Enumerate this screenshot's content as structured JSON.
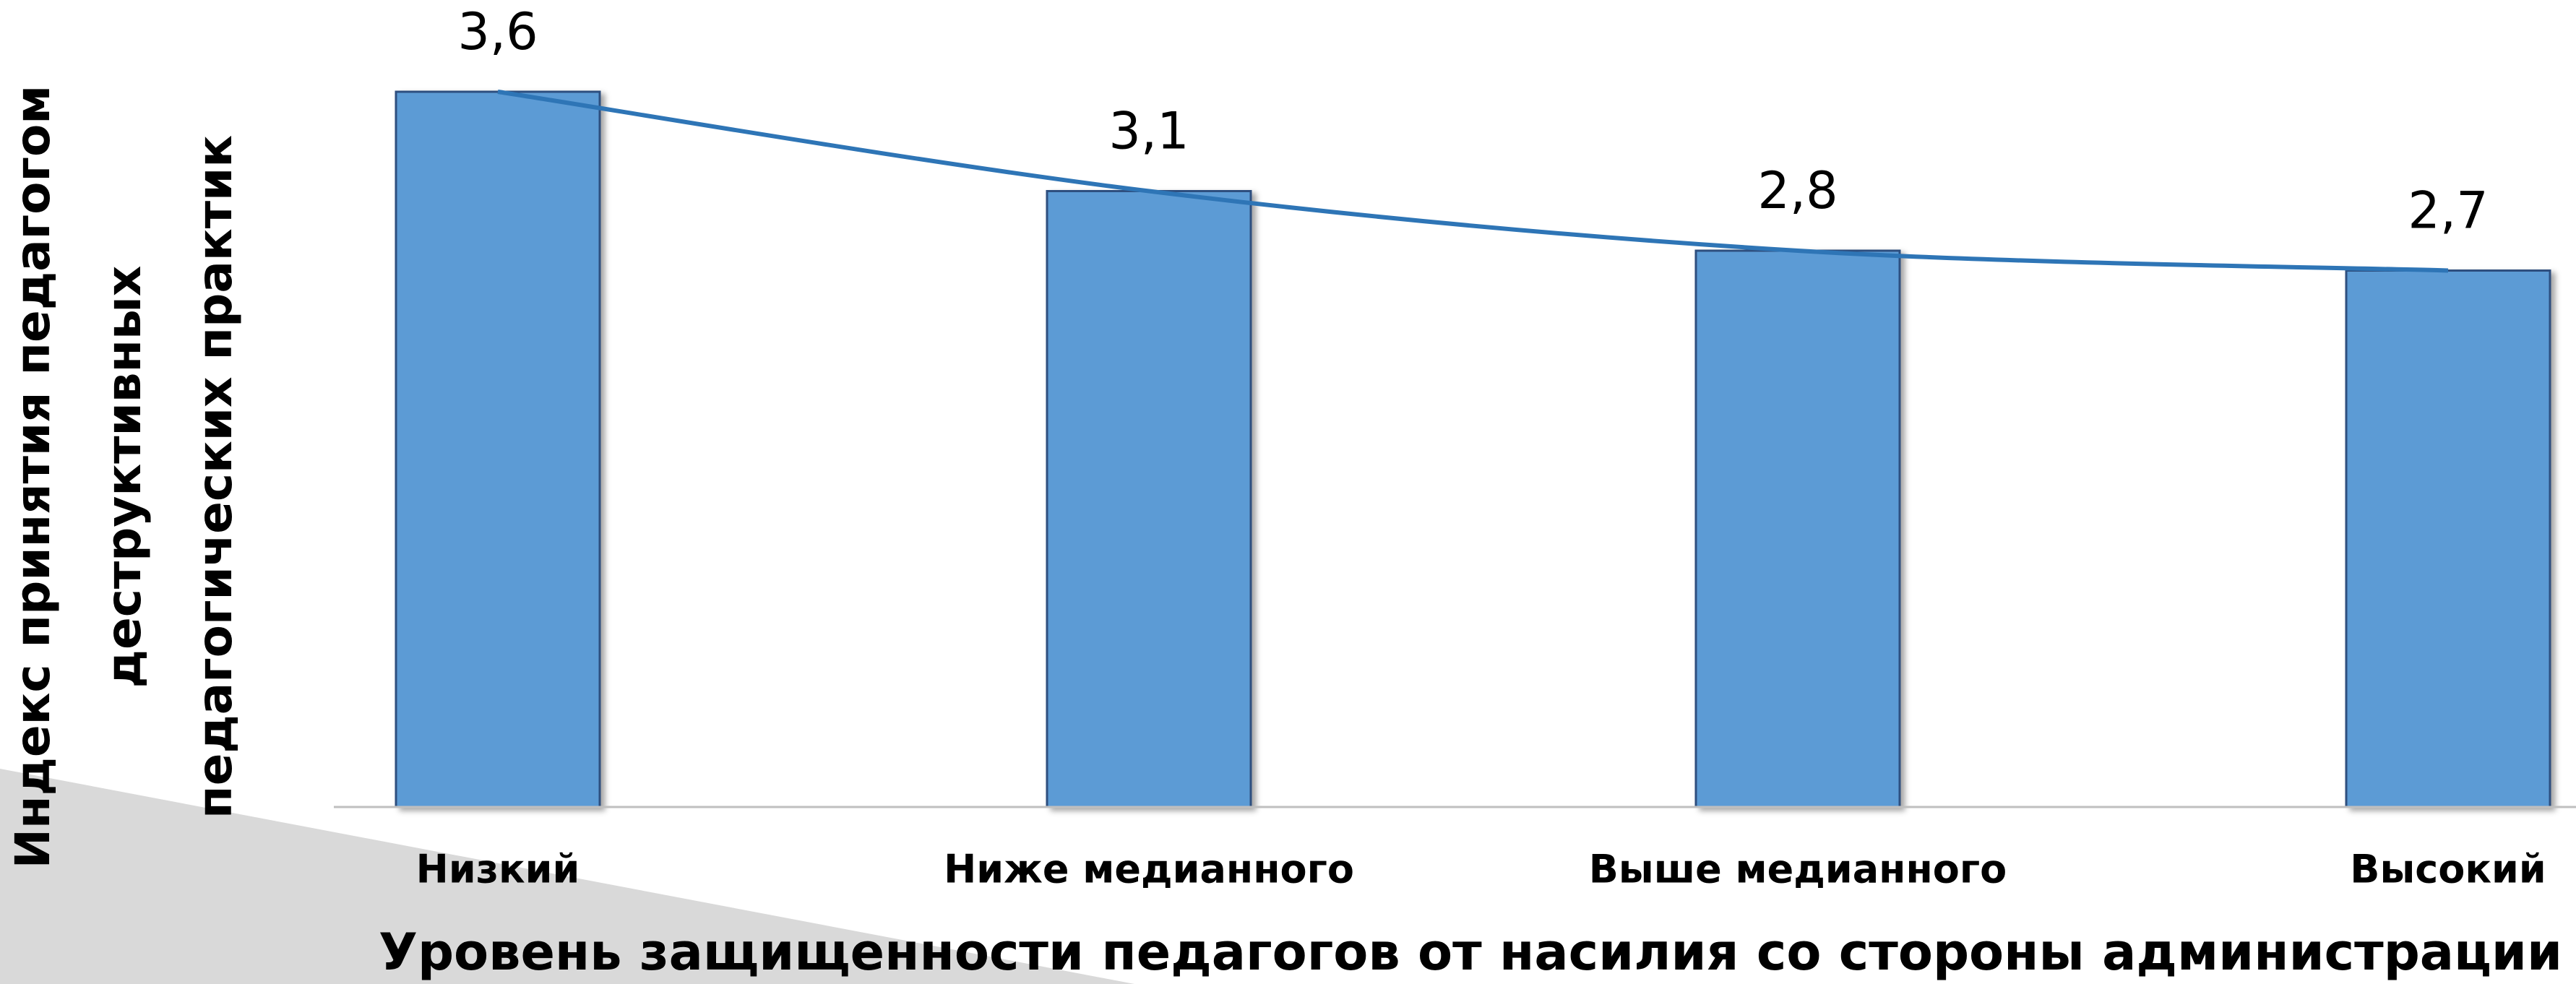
{
  "chart_data": {
    "type": "bar",
    "xlabel": "Уровень защищенности педагогов от насилия со стороны администрации",
    "ylabel": [
      "Индекс принятия педагогом",
      "деструктивных",
      "педагогических практик"
    ],
    "categories": [
      "Низкий",
      "Ниже медианного",
      "Выше медианного",
      "Высокий"
    ],
    "values": [
      3.6,
      3.1,
      2.8,
      2.7
    ],
    "value_labels": [
      "3,6",
      "3,1",
      "2,8",
      "2,7"
    ],
    "color": "#5b9bd5",
    "trendline": true,
    "trendline_color": "#2e75b6",
    "ylim": [
      0,
      3.6
    ]
  }
}
